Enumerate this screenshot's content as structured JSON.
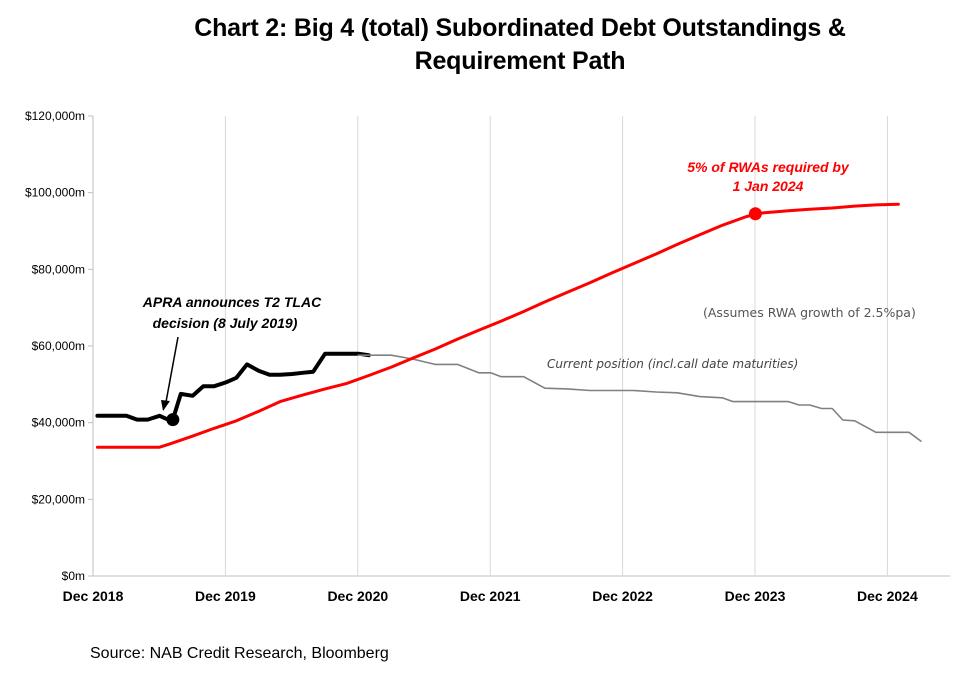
{
  "title_line1": "Chart 2: Big 4 (total) Subordinated Debt Outstandings &",
  "title_line2": "Requirement Path",
  "source": "Source: NAB Credit Research, Bloomberg",
  "chart_data": {
    "type": "line",
    "title": "Chart 2: Big 4 (total) Subordinated Debt Outstandings & Requirement Path",
    "ylim": [
      0,
      120000
    ],
    "y_ticks": [
      {
        "value": 0,
        "label": "$0m"
      },
      {
        "value": 20000,
        "label": "$20,000m"
      },
      {
        "value": 40000,
        "label": "$40,000m"
      },
      {
        "value": 60000,
        "label": "$60,000m"
      },
      {
        "value": 80000,
        "label": "$80,000m"
      },
      {
        "value": 100000,
        "label": "$100,000m"
      },
      {
        "value": 120000,
        "label": "$120,000m"
      }
    ],
    "xlim": [
      2018.917,
      2025.167
    ],
    "x_ticks": [
      {
        "value": 2018.917,
        "label": "Dec 2018"
      },
      {
        "value": 2019.917,
        "label": "Dec 2019"
      },
      {
        "value": 2020.917,
        "label": "Dec 2020"
      },
      {
        "value": 2021.917,
        "label": "Dec 2021"
      },
      {
        "value": 2022.917,
        "label": "Dec 2022"
      },
      {
        "value": 2023.917,
        "label": "Dec 2023"
      },
      {
        "value": 2024.917,
        "label": "Dec 2024"
      }
    ],
    "grid": "vertical",
    "colors": {
      "requirement": "#ff0000",
      "outstanding": "#000000",
      "current": "#808080"
    },
    "series": [
      {
        "id": "outstanding",
        "points": [
          [
            2018.95,
            41800
          ],
          [
            2019.17,
            41800
          ],
          [
            2019.25,
            40800
          ],
          [
            2019.33,
            40800
          ],
          [
            2019.42,
            41800
          ],
          [
            2019.47,
            41000
          ],
          [
            2019.52,
            40800
          ],
          [
            2019.58,
            47500
          ],
          [
            2019.67,
            47000
          ],
          [
            2019.75,
            49500
          ],
          [
            2019.83,
            49500
          ],
          [
            2019.92,
            50500
          ],
          [
            2020.0,
            51700
          ],
          [
            2020.08,
            55200
          ],
          [
            2020.17,
            53500
          ],
          [
            2020.25,
            52500
          ],
          [
            2020.33,
            52500
          ],
          [
            2020.42,
            52700
          ],
          [
            2020.5,
            53000
          ],
          [
            2020.58,
            53300
          ],
          [
            2020.67,
            58000
          ],
          [
            2020.75,
            58000
          ],
          [
            2020.83,
            58000
          ],
          [
            2020.92,
            58000
          ],
          [
            2021.0,
            57600
          ]
        ]
      },
      {
        "id": "current",
        "points": [
          [
            2020.92,
            57600
          ],
          [
            2021.17,
            57600
          ],
          [
            2021.33,
            56600
          ],
          [
            2021.5,
            55200
          ],
          [
            2021.67,
            55200
          ],
          [
            2021.83,
            53000
          ],
          [
            2021.92,
            53000
          ],
          [
            2022.0,
            52000
          ],
          [
            2022.17,
            52000
          ],
          [
            2022.33,
            49000
          ],
          [
            2022.5,
            48800
          ],
          [
            2022.67,
            48400
          ],
          [
            2022.83,
            48400
          ],
          [
            2023.0,
            48400
          ],
          [
            2023.17,
            48000
          ],
          [
            2023.33,
            47800
          ],
          [
            2023.5,
            46800
          ],
          [
            2023.67,
            46500
          ],
          [
            2023.75,
            45500
          ],
          [
            2023.83,
            45500
          ],
          [
            2024.0,
            45500
          ],
          [
            2024.17,
            45500
          ],
          [
            2024.25,
            44600
          ],
          [
            2024.33,
            44600
          ],
          [
            2024.42,
            43700
          ],
          [
            2024.5,
            43700
          ],
          [
            2024.58,
            40700
          ],
          [
            2024.67,
            40500
          ],
          [
            2024.83,
            37500
          ],
          [
            2024.92,
            37500
          ],
          [
            2025.08,
            37500
          ],
          [
            2025.17,
            35200
          ]
        ]
      },
      {
        "id": "requirement",
        "points": [
          [
            2018.95,
            33600
          ],
          [
            2019.17,
            33600
          ],
          [
            2019.33,
            33600
          ],
          [
            2019.42,
            33600
          ],
          [
            2019.5,
            34500
          ],
          [
            2019.67,
            36500
          ],
          [
            2019.83,
            38500
          ],
          [
            2020.0,
            40500
          ],
          [
            2020.17,
            43000
          ],
          [
            2020.33,
            45500
          ],
          [
            2020.5,
            47200
          ],
          [
            2020.67,
            48800
          ],
          [
            2020.83,
            50200
          ],
          [
            2021.0,
            52300
          ],
          [
            2021.17,
            54500
          ],
          [
            2021.33,
            56800
          ],
          [
            2021.5,
            59200
          ],
          [
            2021.67,
            61800
          ],
          [
            2021.83,
            64100
          ],
          [
            2022.0,
            66500
          ],
          [
            2022.17,
            69000
          ],
          [
            2022.33,
            71500
          ],
          [
            2022.5,
            74000
          ],
          [
            2022.67,
            76500
          ],
          [
            2022.83,
            79000
          ],
          [
            2023.0,
            81500
          ],
          [
            2023.17,
            84000
          ],
          [
            2023.33,
            86500
          ],
          [
            2023.5,
            89000
          ],
          [
            2023.67,
            91500
          ],
          [
            2023.83,
            93500
          ],
          [
            2023.92,
            94500
          ],
          [
            2024.0,
            94800
          ],
          [
            2024.17,
            95300
          ],
          [
            2024.33,
            95700
          ],
          [
            2024.5,
            96000
          ],
          [
            2024.67,
            96500
          ],
          [
            2024.83,
            96800
          ],
          [
            2025.0,
            97000
          ]
        ]
      }
    ],
    "markers": [
      {
        "series": "outstanding",
        "x": 2019.52,
        "y": 40800
      },
      {
        "series": "requirement",
        "x": 2023.92,
        "y": 94500
      }
    ],
    "annotations": {
      "red_line1": "5% of RWAs required by",
      "red_line2": "1 Jan 2024",
      "apra_line1": "APRA announces  T2 TLAC",
      "apra_line2": "decision (8 July 2019)",
      "rwa_growth": "(Assumes RWA growth of 2.5%pa)",
      "current_position": "Current position (incl.call date maturities)"
    }
  }
}
